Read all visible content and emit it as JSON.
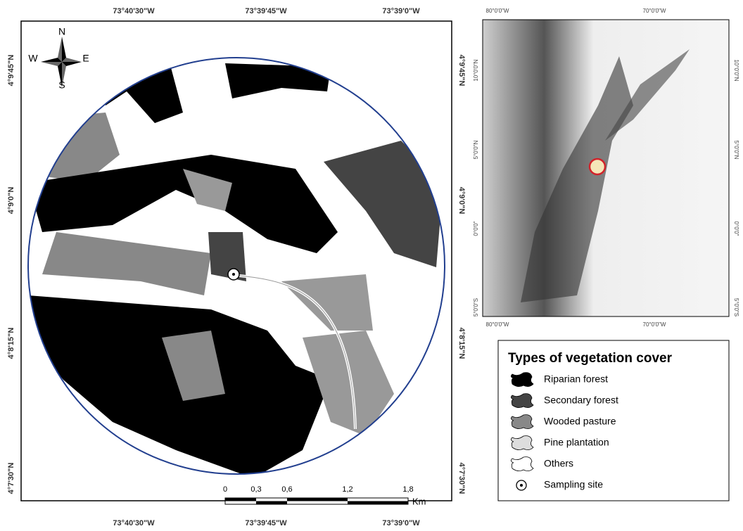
{
  "main_map": {
    "top_labels": [
      "73°40'30\"W",
      "73°39'45\"W",
      "73°39'0\"W"
    ],
    "bottom_labels": [
      "73°40'30\"W",
      "73°39'45\"W",
      "73°39'0\"W"
    ],
    "left_labels": [
      "4°9'45\"N",
      "4°9'0\"N",
      "4°8'15\"N",
      "4°7'30\"N"
    ],
    "right_labels": [
      "4°9'45\"N",
      "4°9'0\"N",
      "4°8'15\"N",
      "4°7'30\"N"
    ],
    "compass": {
      "n": "N",
      "s": "S",
      "e": "E",
      "w": "W"
    },
    "scale_bar": {
      "ticks": [
        "0",
        "0,3",
        "0,6",
        "1,2",
        "1,8"
      ],
      "unit": "Km"
    }
  },
  "inset_map": {
    "top_labels": [
      "80°0'0\"W",
      "70°0'0\"W"
    ],
    "bottom_labels": [
      "80°0'0\"W",
      "70°0'0\"W"
    ],
    "left_labels": [
      "10°0'0\"N",
      "5°0'0\"N",
      "0°0'0\"",
      "5°0'0\"S"
    ],
    "right_labels": [
      "10°0'0\"N",
      "5°0'0\"N",
      "0°0'0\"",
      "5°0'0\"S"
    ]
  },
  "legend": {
    "title": "Types of vegetation cover",
    "items": [
      "Riparian forest",
      "Secondary forest",
      "Wooded pasture",
      "Pine plantation",
      "Others",
      "Sampling site"
    ]
  }
}
